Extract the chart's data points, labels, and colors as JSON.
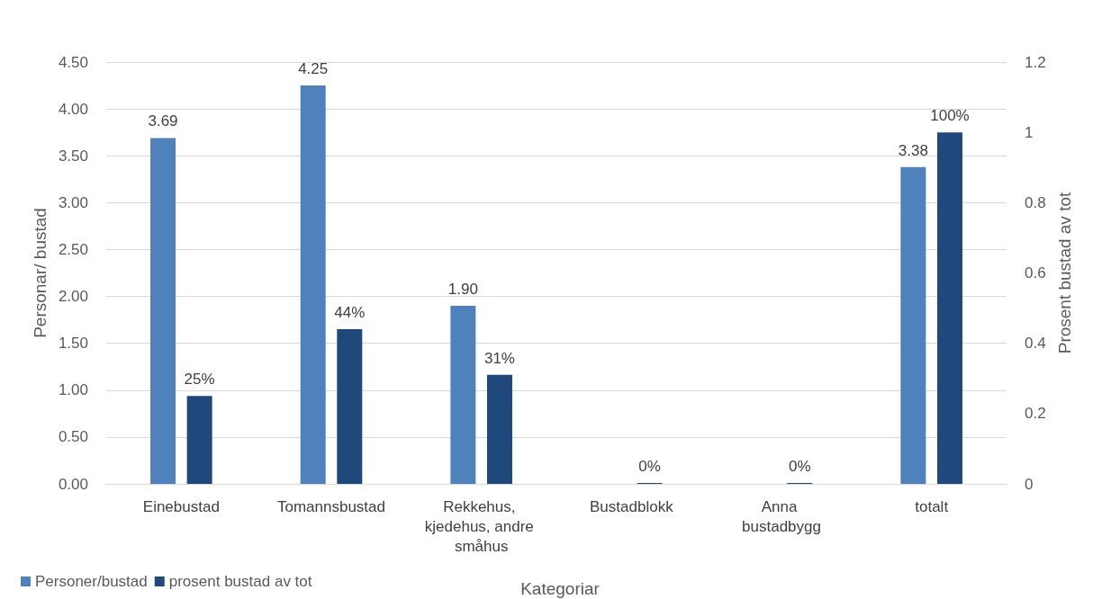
{
  "chart_data": {
    "type": "bar",
    "xlabel": "Kategoriar",
    "ylabel": "Personar/ bustad",
    "y2label": "Prosent bustad av tot",
    "categories": [
      "Einebustad",
      "Tomannsbustad",
      "Rekkehus, kjedehus, andre småhus",
      "Bustadblokk",
      "Anna bustadbygg",
      "totalt"
    ],
    "series": [
      {
        "name": "Personer/bustad",
        "color": "#4f81bd",
        "values": [
          3.69,
          4.25,
          1.9,
          null,
          null,
          3.38
        ],
        "value_labels": [
          "3.69",
          "4.25",
          "1.90",
          null,
          null,
          "3.38"
        ]
      },
      {
        "name": "prosent bustad av tot",
        "color": "#1f497d",
        "axis": "y2",
        "values": [
          0.25,
          0.44,
          0.31,
          0,
          0,
          1.0
        ],
        "value_labels": [
          "25%",
          "44%",
          "31%",
          "0%",
          "0%",
          "100%"
        ]
      }
    ],
    "ylim": [
      0,
      4.5
    ],
    "yticks": [
      {
        "value": 0,
        "label": "0.00"
      },
      {
        "value": 0.5,
        "label": "0.50"
      },
      {
        "value": 1,
        "label": "1.00"
      },
      {
        "value": 1.5,
        "label": "1.50"
      },
      {
        "value": 2,
        "label": "2.00"
      },
      {
        "value": 2.5,
        "label": "2.50"
      },
      {
        "value": 3,
        "label": "3.00"
      },
      {
        "value": 3.5,
        "label": "3.50"
      },
      {
        "value": 4,
        "label": "4.00"
      },
      {
        "value": 4.5,
        "label": "4.50"
      }
    ],
    "y2lim": [
      0,
      1.2
    ],
    "y2ticks": [
      0,
      0.2,
      0.4,
      0.6,
      0.8,
      1,
      1.2
    ],
    "grid": "y",
    "legend": "bottom left"
  }
}
